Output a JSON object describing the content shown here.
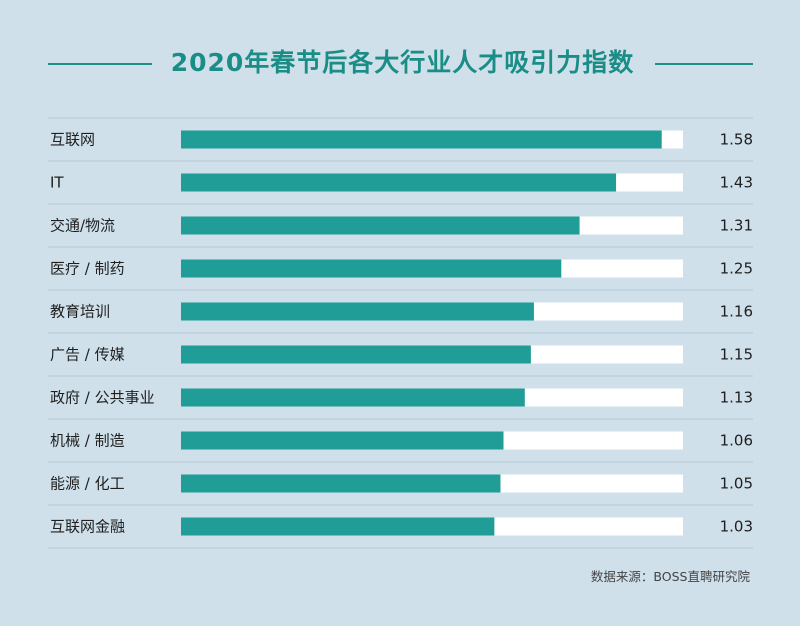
{
  "chart_data": {
    "type": "bar",
    "orientation": "horizontal",
    "title": "2020年春节后各大行业人才吸引力指数",
    "categories": [
      "互联网",
      "IT",
      "交通/物流",
      "医疗 / 制药",
      "教育培训",
      "广告 / 传媒",
      "政府 / 公共事业",
      "机械 / 制造",
      "能源 / 化工",
      "互联网金融"
    ],
    "values": [
      1.58,
      1.43,
      1.31,
      1.25,
      1.16,
      1.15,
      1.13,
      1.06,
      1.05,
      1.03
    ],
    "value_labels": [
      "1.58",
      "1.43",
      "1.31",
      "1.25",
      "1.16",
      "1.15",
      "1.13",
      "1.06",
      "1.05",
      "1.03"
    ],
    "xlim": [
      0,
      1.65
    ],
    "xlabel": "",
    "ylabel": "",
    "grid": false,
    "legend": "none",
    "bar_color": "#1f9d96",
    "track_color": "#ffffff",
    "source": "数据来源：BOSS直聘研究院"
  }
}
